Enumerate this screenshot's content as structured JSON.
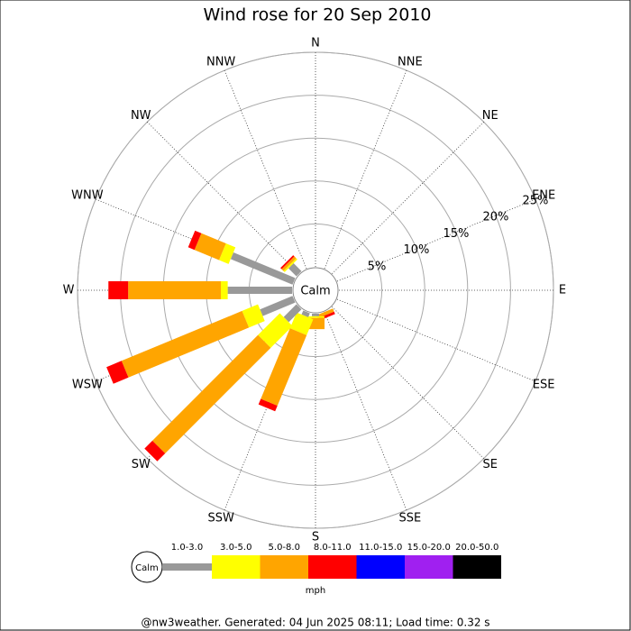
{
  "chart_data": {
    "type": "windrose",
    "title": "Wind rose for 20 Sep 2010",
    "directions": [
      "N",
      "NNE",
      "NE",
      "ENE",
      "E",
      "ESE",
      "SE",
      "SSE",
      "S",
      "SSW",
      "SW",
      "WSW",
      "W",
      "WNW",
      "NW",
      "NNW"
    ],
    "calm_label": "Calm",
    "rlim": [
      0,
      25
    ],
    "rticks": [
      {
        "value": 5,
        "label": "5%"
      },
      {
        "value": 10,
        "label": "10%"
      },
      {
        "value": 15,
        "label": "15%"
      },
      {
        "value": 20,
        "label": "20%"
      },
      {
        "value": 25,
        "label": "25%"
      }
    ],
    "series": [
      {
        "name": "1.0-3.0",
        "color": "#999999",
        "values": [
          0,
          0,
          0,
          0,
          0,
          0,
          0,
          0,
          0.3,
          0.5,
          2.1,
          4.1,
          7.5,
          7.8,
          1.3,
          0
        ]
      },
      {
        "name": "3.0-5.0",
        "color": "#ffff00",
        "values": [
          0,
          0,
          0,
          0,
          0,
          0,
          0,
          0,
          0.2,
          2.0,
          3.6,
          2.0,
          0.8,
          1.2,
          0.2,
          0
        ]
      },
      {
        "name": "5.0-8.0",
        "color": "#ffa500",
        "values": [
          0,
          0,
          0,
          0,
          0,
          0,
          0,
          0.4,
          1.3,
          8.9,
          17.4,
          15.2,
          10.8,
          3.1,
          0.3,
          0
        ]
      },
      {
        "name": "8.0-11.0",
        "color": "#ff0000",
        "values": [
          0,
          0,
          0,
          0,
          0,
          0,
          0,
          0.3,
          0,
          0.7,
          1.3,
          1.9,
          2.3,
          0.8,
          0.2,
          0
        ]
      },
      {
        "name": "11.0-15.0",
        "color": "#0000ff",
        "values": [
          0,
          0,
          0,
          0,
          0,
          0,
          0,
          0,
          0,
          0,
          0,
          0,
          0,
          0,
          0,
          0
        ]
      },
      {
        "name": "15.0-20.0",
        "color": "#a020f0",
        "values": [
          0,
          0,
          0,
          0,
          0,
          0,
          0,
          0,
          0,
          0,
          0,
          0,
          0,
          0,
          0,
          0
        ]
      },
      {
        "name": "20.0-50.0",
        "color": "#000000",
        "values": [
          0,
          0,
          0,
          0,
          0,
          0,
          0,
          0,
          0,
          0,
          0,
          0,
          0,
          0,
          0,
          0
        ]
      }
    ],
    "unit": "mph",
    "footer": "@nw3weather. Generated: 04 Jun 2025 08:11; Load time: 0.32 s"
  }
}
